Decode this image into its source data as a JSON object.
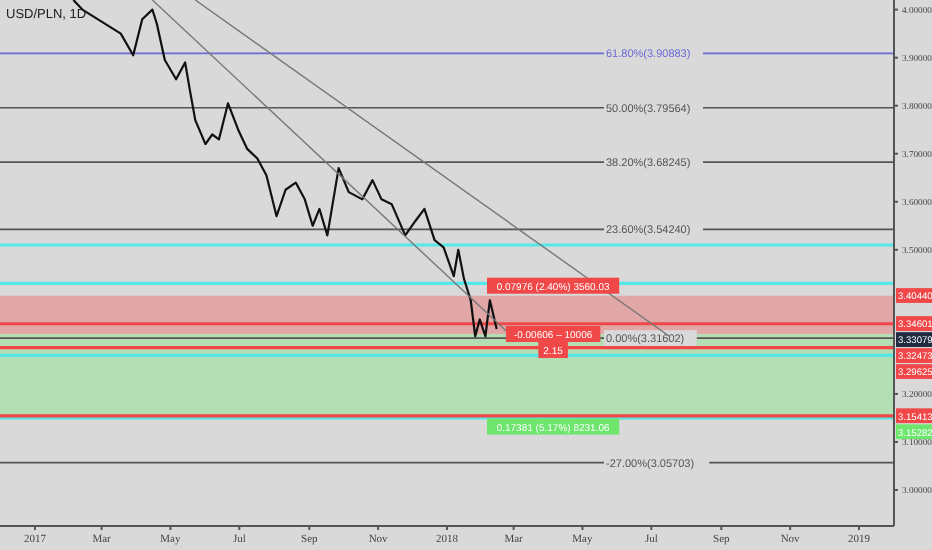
{
  "chart_data": {
    "type": "line",
    "title": "USD/PLN, 1D",
    "series": [
      {
        "color": "#111111",
        "x": [
          "2017-02-04",
          "2017-02-12",
          "2017-03-18",
          "2017-03-29",
          "2017-04-06",
          "2017-04-15",
          "2017-04-19",
          "2017-04-26",
          "2017-05-06",
          "2017-05-14",
          "2017-05-18",
          "2017-05-23",
          "2017-06-01",
          "2017-06-07",
          "2017-06-13",
          "2017-06-21",
          "2017-06-30",
          "2017-07-08",
          "2017-07-17",
          "2017-07-25",
          "2017-08-03",
          "2017-08-11",
          "2017-08-20",
          "2017-08-28",
          "2017-09-04",
          "2017-09-10",
          "2017-09-17",
          "2017-09-27",
          "2017-10-06",
          "2017-10-18",
          "2017-10-27",
          "2017-11-04",
          "2017-11-13",
          "2017-11-25",
          "2017-12-04",
          "2017-12-12",
          "2017-12-21",
          "2017-12-29",
          "2018-01-07",
          "2018-01-11",
          "2018-01-16",
          "2018-01-22",
          "2018-01-26",
          "2018-01-30",
          "2018-02-04",
          "2018-02-08",
          "2018-02-14"
        ],
        "values": [
          4.02,
          4.0,
          3.95,
          3.905,
          3.98,
          4.0,
          3.97,
          3.895,
          3.855,
          3.89,
          3.835,
          3.77,
          3.72,
          3.74,
          3.73,
          3.805,
          3.75,
          3.71,
          3.69,
          3.655,
          3.57,
          3.625,
          3.64,
          3.605,
          3.55,
          3.585,
          3.53,
          3.67,
          3.62,
          3.605,
          3.645,
          3.605,
          3.595,
          3.53,
          3.56,
          3.585,
          3.52,
          3.505,
          3.445,
          3.5,
          3.44,
          3.395,
          3.32,
          3.355,
          3.32,
          3.395,
          3.335
        ]
      },
      {
        "color": "#777777",
        "x": [
          "2017-04-15",
          "2018-02-23"
        ],
        "values": [
          4.02,
          3.33
        ]
      },
      {
        "color": "#777777",
        "x": [
          "2017-05-23",
          "2018-07-17"
        ],
        "values": [
          4.02,
          3.32
        ]
      }
    ],
    "xlim": [
      "2016-12-01",
      "2019-02-01"
    ],
    "xticks": [
      {
        "value": "2017-01",
        "label": "2017"
      },
      {
        "value": "2017-03",
        "label": "Mar"
      },
      {
        "value": "2017-05",
        "label": "May"
      },
      {
        "value": "2017-07",
        "label": "Jul"
      },
      {
        "value": "2017-09",
        "label": "Sep"
      },
      {
        "value": "2017-11",
        "label": "Nov"
      },
      {
        "value": "2018-01",
        "label": "2018"
      },
      {
        "value": "2018-03",
        "label": "Mar"
      },
      {
        "value": "2018-05",
        "label": "May"
      },
      {
        "value": "2018-07",
        "label": "Jul"
      },
      {
        "value": "2018-09",
        "label": "Sep"
      },
      {
        "value": "2018-11",
        "label": "Nov"
      },
      {
        "value": "2019-01",
        "label": "2019"
      }
    ],
    "ylim": [
      2.925,
      4.02
    ],
    "yticks": [
      {
        "value": 3.0,
        "label": "3.00000"
      },
      {
        "value": 3.1,
        "label": "3.10000"
      },
      {
        "value": 3.2,
        "label": "3.20000"
      },
      {
        "value": 3.5,
        "label": "3.50000"
      },
      {
        "value": 3.6,
        "label": "3.60000"
      },
      {
        "value": 3.7,
        "label": "3.70000"
      },
      {
        "value": 3.8,
        "label": "3.80000"
      },
      {
        "value": 3.9,
        "label": "3.90000"
      },
      {
        "value": 4.0,
        "label": "4.00000"
      }
    ],
    "ref_lines": [
      {
        "axis": "y",
        "value": 3.90883,
        "label": "61.80%(3.90883)",
        "color": "#6b6bd6"
      },
      {
        "axis": "y",
        "value": 3.79564,
        "label": "50.00%(3.79564)",
        "color": "#555555"
      },
      {
        "axis": "y",
        "value": 3.68245,
        "label": "38.20%(3.68245)",
        "color": "#555555"
      },
      {
        "axis": "y",
        "value": 3.5424,
        "label": "23.60%(3.54240)",
        "color": "#555555"
      },
      {
        "axis": "y",
        "value": 3.31602,
        "label": "0.00%(3.31602)",
        "color": "#555555"
      },
      {
        "axis": "y",
        "value": 3.05703,
        "label": "-27.00%(3.05703)",
        "color": "#555555"
      },
      {
        "axis": "y",
        "value": 3.51,
        "color": "#55e8e8"
      },
      {
        "axis": "y",
        "value": 3.43,
        "color": "#55e8e8"
      },
      {
        "axis": "y",
        "value": 3.28,
        "color": "#55e8e8"
      },
      {
        "axis": "y",
        "value": 3.15,
        "color": "#55e8e8"
      },
      {
        "axis": "y",
        "value": 3.34601,
        "color": "#f04848"
      },
      {
        "axis": "y",
        "value": 3.29625,
        "color": "#f04848"
      },
      {
        "axis": "y",
        "value": 3.15413,
        "color": "#f04848"
      }
    ],
    "bands": [
      {
        "axis": "y",
        "from": 3.32473,
        "to": 3.4044,
        "color": "#f04848"
      },
      {
        "axis": "y",
        "from": 3.15282,
        "to": 3.32473,
        "color": "#6ee66e"
      }
    ],
    "annotations": [
      {
        "text": "0.07976 (2.40%) 3560.03",
        "x": "2018-04-05",
        "y": 3.4044
      },
      {
        "text": "-0.00606 – 10006",
        "x": "2018-04-05",
        "y": 3.32473
      },
      {
        "text": "2.15",
        "x": "2018-04-05",
        "y": 3.32473
      },
      {
        "text": "0.17381 (5.17%) 8231.06",
        "x": "2018-04-05",
        "y": 3.15282
      },
      {
        "text": "3.40440",
        "x": "2019-02-01",
        "y": 3.4044
      },
      {
        "text": "3.34601",
        "x": "2019-02-01",
        "y": 3.34601
      },
      {
        "text": "3.33079",
        "x": "2019-02-01",
        "y": 3.33079
      },
      {
        "text": "3.32473",
        "x": "2019-02-01",
        "y": 3.32473
      },
      {
        "text": "3.29625",
        "x": "2019-02-01",
        "y": 3.29625
      },
      {
        "text": "3.15413",
        "x": "2019-02-01",
        "y": 3.15413
      },
      {
        "text": "3.15282",
        "x": "2019-02-01",
        "y": 3.15282
      }
    ],
    "grid": false,
    "legend": false,
    "marker": "none",
    "line_style": "solid"
  }
}
